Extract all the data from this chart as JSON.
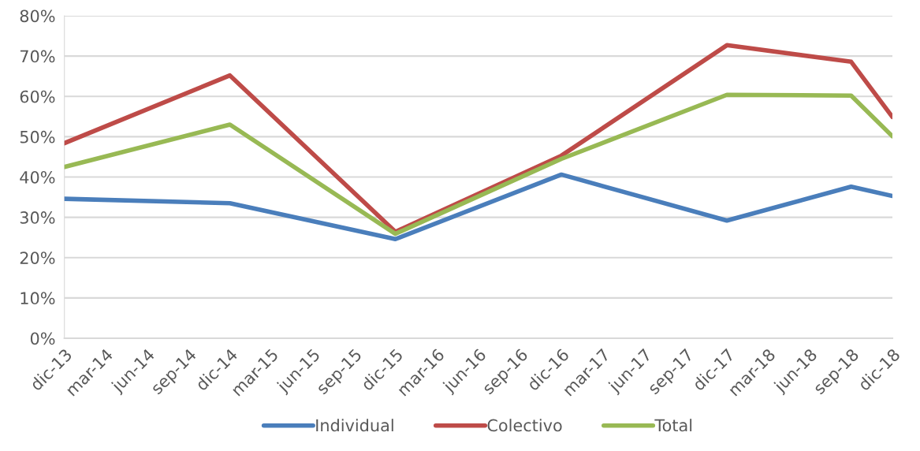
{
  "chart_data": {
    "type": "line",
    "x": [
      "2013-12",
      "2014-12",
      "2015-12",
      "2016-12",
      "2017-12",
      "2018-09",
      "2018-12"
    ],
    "series": [
      {
        "name": "Individual",
        "color": "#4a7ebb",
        "values": [
          34.6,
          33.5,
          24.6,
          40.6,
          29.2,
          37.6,
          35.3
        ]
      },
      {
        "name": "Colectivo",
        "color": "#be4b48",
        "values": [
          48.4,
          65.2,
          26.4,
          45.3,
          72.7,
          68.6,
          54.9
        ]
      },
      {
        "name": "Total",
        "color": "#98b954",
        "values": [
          42.5,
          53.0,
          25.9,
          44.5,
          60.4,
          60.2,
          50.1
        ]
      }
    ],
    "ylim": [
      0,
      80
    ],
    "yticks": [
      {
        "value": 0,
        "label": "0%"
      },
      {
        "value": 10,
        "label": "10%"
      },
      {
        "value": 20,
        "label": "20%"
      },
      {
        "value": 30,
        "label": "30%"
      },
      {
        "value": 40,
        "label": "40%"
      },
      {
        "value": 50,
        "label": "50%"
      },
      {
        "value": 60,
        "label": "60%"
      },
      {
        "value": 70,
        "label": "70%"
      },
      {
        "value": 80,
        "label": "80%"
      }
    ],
    "xlim": [
      "2013-12",
      "2018-12"
    ],
    "xticks": [
      {
        "value": "2013-12",
        "label": "dic-13"
      },
      {
        "value": "2014-03",
        "label": "mar-14"
      },
      {
        "value": "2014-06",
        "label": "jun-14"
      },
      {
        "value": "2014-09",
        "label": "sep-14"
      },
      {
        "value": "2014-12",
        "label": "dic-14"
      },
      {
        "value": "2015-03",
        "label": "mar-15"
      },
      {
        "value": "2015-06",
        "label": "jun-15"
      },
      {
        "value": "2015-09",
        "label": "sep-15"
      },
      {
        "value": "2015-12",
        "label": "dic-15"
      },
      {
        "value": "2016-03",
        "label": "mar-16"
      },
      {
        "value": "2016-06",
        "label": "jun-16"
      },
      {
        "value": "2016-09",
        "label": "sep-16"
      },
      {
        "value": "2016-12",
        "label": "dic-16"
      },
      {
        "value": "2017-03",
        "label": "mar-17"
      },
      {
        "value": "2017-06",
        "label": "jun-17"
      },
      {
        "value": "2017-09",
        "label": "sep-17"
      },
      {
        "value": "2017-12",
        "label": "dic-17"
      },
      {
        "value": "2018-03",
        "label": "mar-18"
      },
      {
        "value": "2018-06",
        "label": "jun-18"
      },
      {
        "value": "2018-09",
        "label": "sep-18"
      },
      {
        "value": "2018-12",
        "label": "dic-18"
      }
    ],
    "grid": "y",
    "legend": "bottom",
    "marker": "none",
    "line_style": "solid"
  }
}
